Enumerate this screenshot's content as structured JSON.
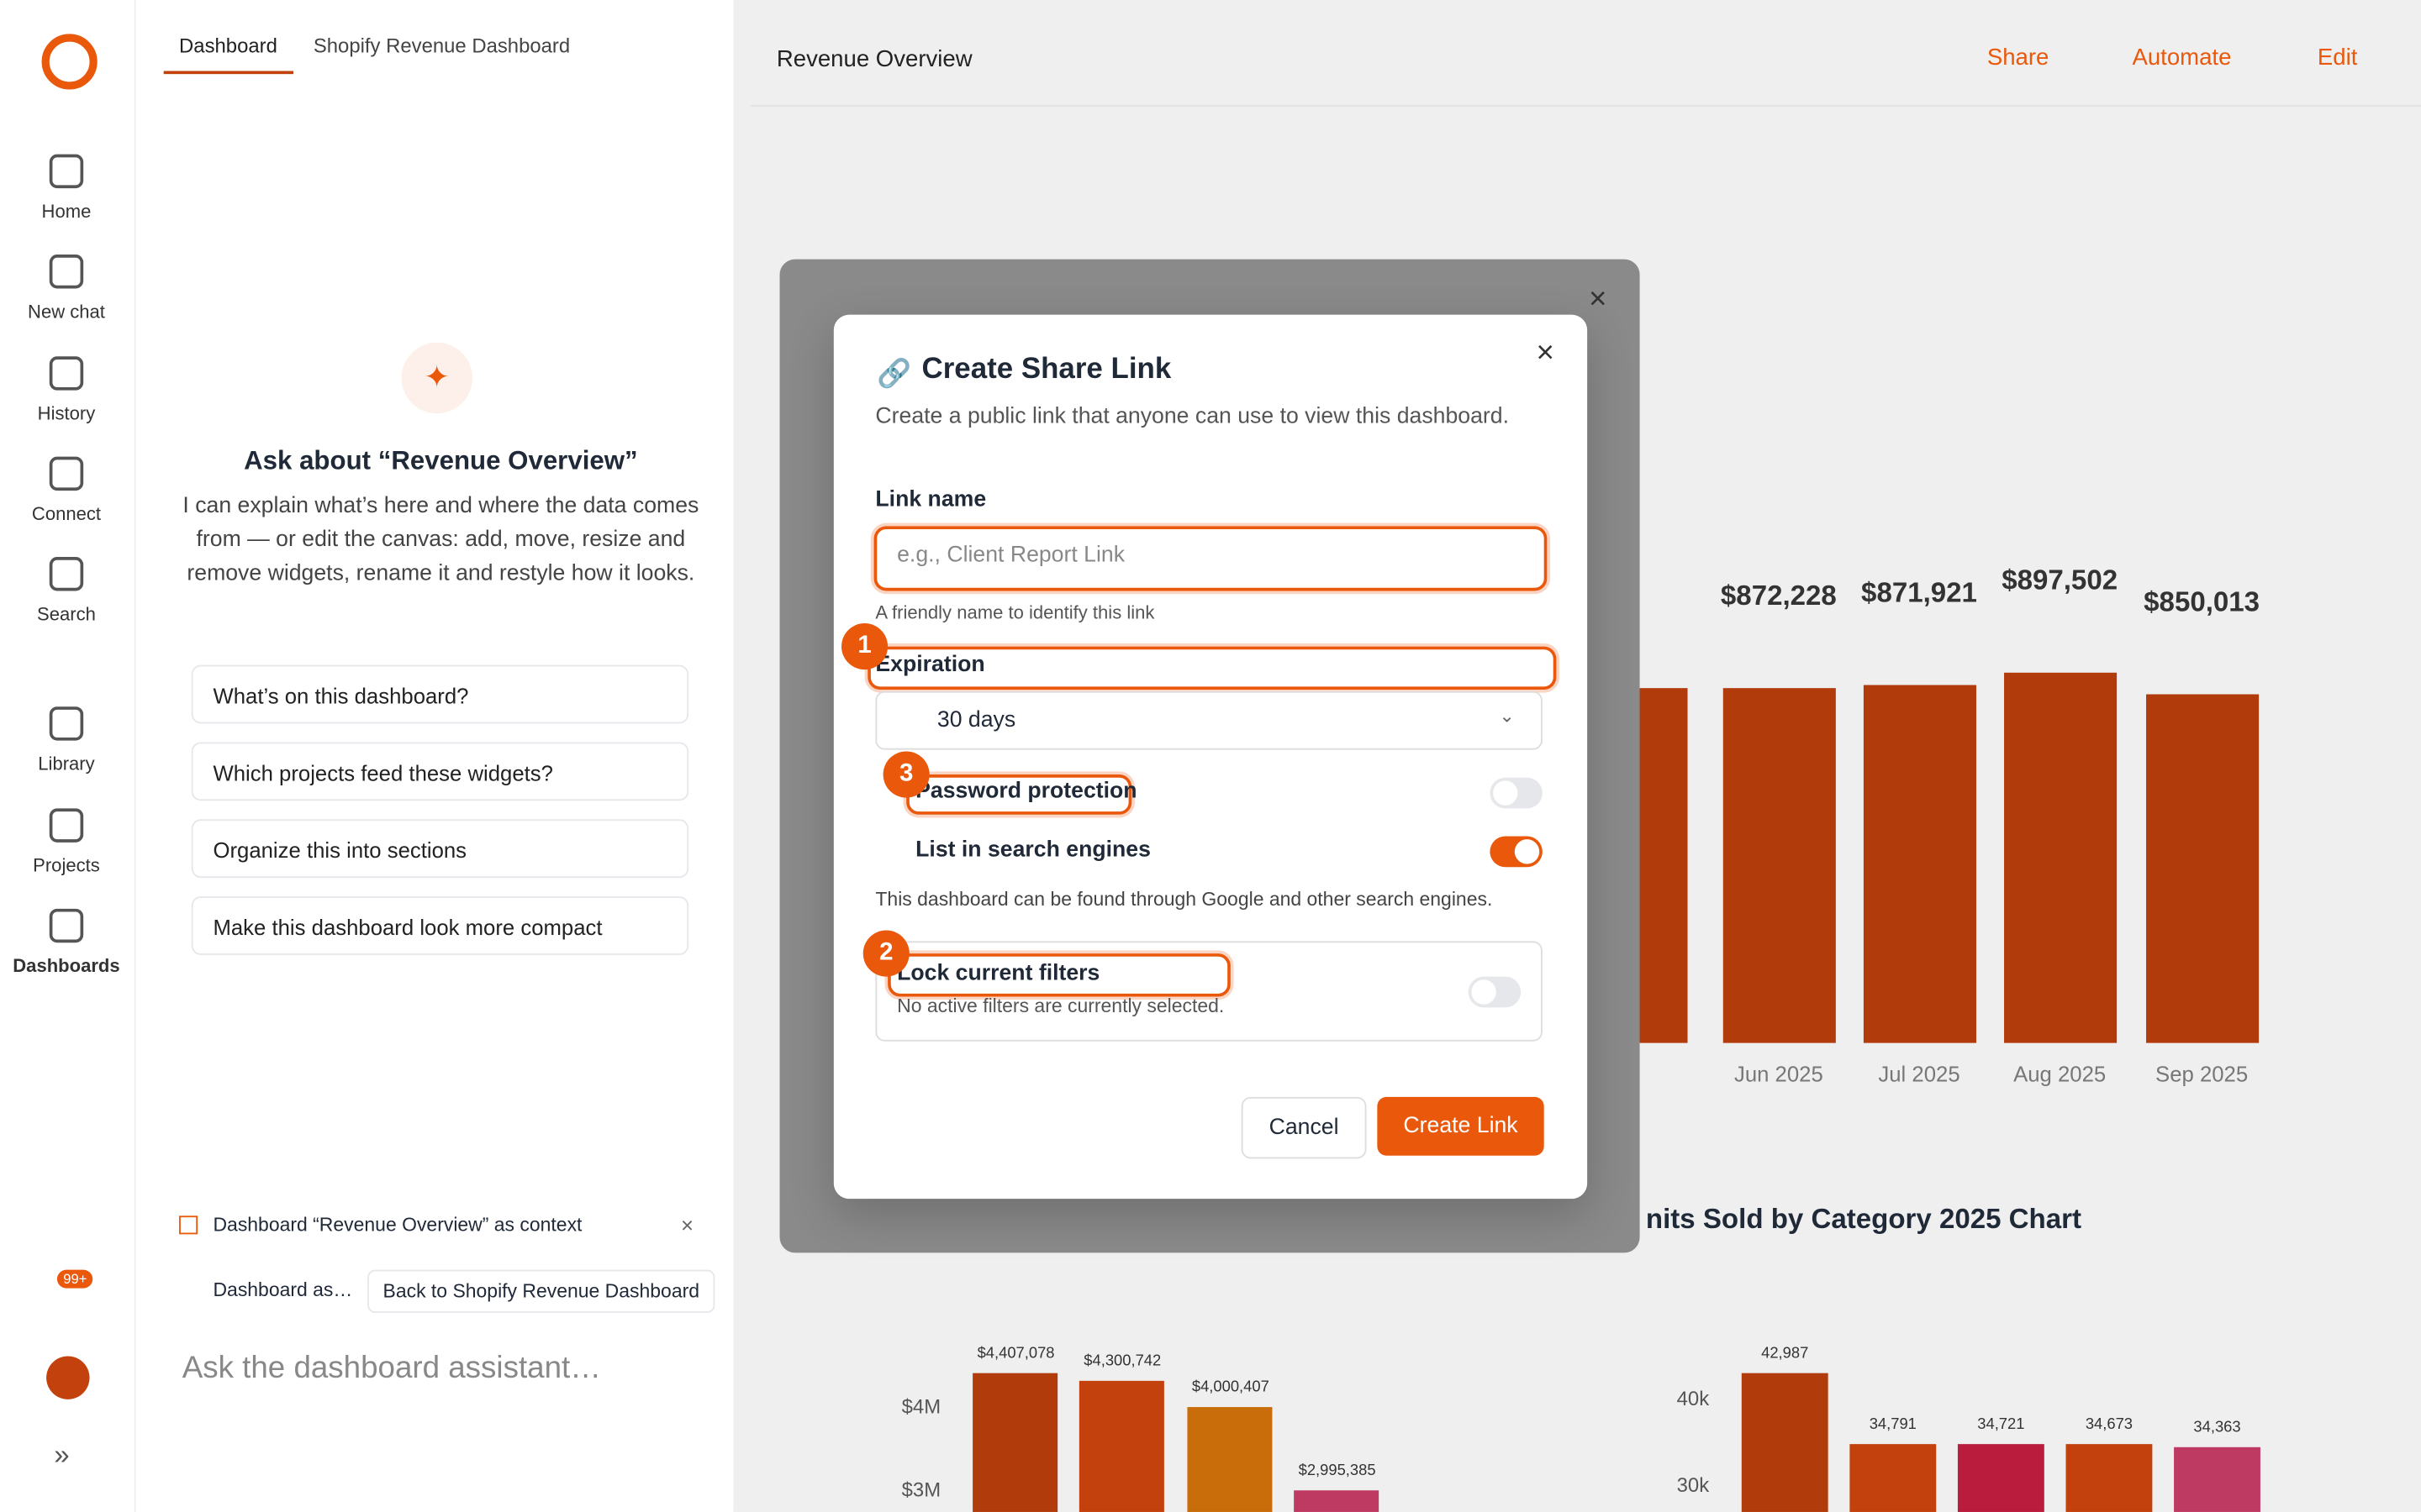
{
  "sidebar": {
    "items": [
      "Home",
      "New chat",
      "History",
      "Connect",
      "Search",
      "Library",
      "Projects",
      "Dashboards"
    ],
    "badge": "99+"
  },
  "assistant": {
    "tabs": [
      "Dashboard",
      "Shopify Revenue Dashboard"
    ],
    "title": "Ask about “Revenue Overview”",
    "description": "I can explain what’s here and where the data comes from — or edit the canvas: add, move, resize and remove widgets, rename it and restyle how it looks.",
    "suggestions": [
      "What’s on this dashboard?",
      "Which projects feed these widgets?",
      "Organize this into sections",
      "Make this dashboard look more compact"
    ],
    "context": "Dashboard “Revenue Overview” as context",
    "chips": [
      "Dashboard as…",
      "Back to Shopify Revenue Dashboard"
    ],
    "input_placeholder": "Ask the dashboard assistant…"
  },
  "topbar": {
    "title": "Revenue Overview",
    "actions": [
      "Share",
      "Automate",
      "Edit"
    ]
  },
  "background": {
    "revenue_chart": {
      "value_labels": [
        "$872,228",
        "$871,921",
        "$897,502",
        "$850,013"
      ],
      "categories": [
        "Jun 2025",
        "Jul 2025",
        "Aug 2025",
        "Sep 2025"
      ]
    },
    "units_chart": {
      "title": "nits Sold by Category 2025 Chart",
      "yticks": [
        "40k",
        "30k"
      ],
      "value_labels": [
        "42,987",
        "34,791",
        "34,721",
        "34,673",
        "34,363"
      ]
    },
    "category_chart": {
      "yticks": [
        "$4M",
        "$3M"
      ],
      "value_labels": [
        "$4,407,078",
        "$4,300,742",
        "$4,000,407",
        "$2,995,385"
      ]
    }
  },
  "modal": {
    "title": "Create Share Link",
    "subtitle": "Create a public link that anyone can use to view this dashboard.",
    "link_name_label": "Link name",
    "link_name_placeholder": "e.g., Client Report Link",
    "link_name_help": "A friendly name to identify this link",
    "expiration_label": "Expiration",
    "expiration_value": "30 days",
    "password_label": "Password protection",
    "search_label": "List in search engines",
    "search_help": "This dashboard can be found through Google and other search engines.",
    "lock_label": "Lock current filters",
    "lock_help": "No active filters are currently selected.",
    "cancel": "Cancel",
    "create": "Create Link"
  },
  "annotations": [
    "1",
    "2",
    "3"
  ]
}
